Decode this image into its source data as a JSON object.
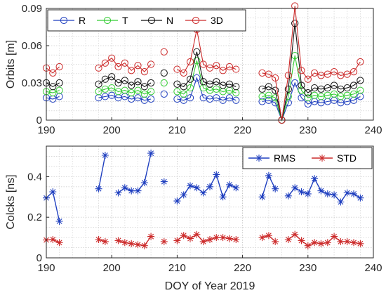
{
  "chart_data": [
    {
      "type": "line",
      "ylabel": "Orbits [m]",
      "xlabel": "",
      "xlim": [
        190,
        240
      ],
      "ylim": [
        0,
        0.09
      ],
      "yticks": [
        "0",
        "0.03",
        "0.06",
        "0.09"
      ],
      "xticks": [
        "190",
        "200",
        "210",
        "220",
        "230",
        "240"
      ],
      "grid": true,
      "legend_position": "top",
      "marker": "circle",
      "series": [
        {
          "name": "R",
          "color": "#1f3fbf",
          "x": [
            190,
            191,
            192,
            198,
            199,
            200,
            201,
            202,
            203,
            204,
            205,
            206,
            208,
            210,
            211,
            212,
            213,
            214,
            215,
            216,
            217,
            218,
            219,
            223,
            224,
            225,
            226,
            227,
            228,
            229,
            230,
            231,
            232,
            233,
            234,
            235,
            236,
            237,
            238
          ],
          "y": [
            0.018,
            0.017,
            0.019,
            0.018,
            0.019,
            0.02,
            0.018,
            0.019,
            0.017,
            0.018,
            0.016,
            0.017,
            0.021,
            0.017,
            0.016,
            0.018,
            0.034,
            0.018,
            0.017,
            0.018,
            0.016,
            0.018,
            0.016,
            0.015,
            0.016,
            0.014,
            0.0,
            0.014,
            0.03,
            0.018,
            0.013,
            0.015,
            0.014,
            0.015,
            0.016,
            0.014,
            0.015,
            0.016,
            0.019
          ]
        },
        {
          "name": "T",
          "color": "#33cc33",
          "x": [
            190,
            191,
            192,
            198,
            199,
            200,
            201,
            202,
            203,
            204,
            205,
            206,
            208,
            210,
            211,
            212,
            213,
            214,
            215,
            216,
            217,
            218,
            219,
            223,
            224,
            225,
            226,
            227,
            228,
            229,
            230,
            231,
            232,
            233,
            234,
            235,
            236,
            237,
            238
          ],
          "y": [
            0.023,
            0.022,
            0.024,
            0.023,
            0.025,
            0.026,
            0.023,
            0.024,
            0.022,
            0.024,
            0.021,
            0.023,
            0.03,
            0.023,
            0.021,
            0.026,
            0.048,
            0.026,
            0.024,
            0.025,
            0.023,
            0.024,
            0.022,
            0.019,
            0.02,
            0.018,
            0.0,
            0.019,
            0.052,
            0.024,
            0.018,
            0.02,
            0.019,
            0.02,
            0.021,
            0.019,
            0.02,
            0.021,
            0.024
          ]
        },
        {
          "name": "N",
          "color": "#111111",
          "x": [
            190,
            191,
            192,
            198,
            199,
            200,
            201,
            202,
            203,
            204,
            205,
            206,
            208,
            210,
            211,
            212,
            213,
            214,
            215,
            216,
            217,
            218,
            219,
            223,
            224,
            225,
            226,
            227,
            228,
            229,
            230,
            231,
            232,
            233,
            234,
            235,
            236,
            237,
            238
          ],
          "y": [
            0.03,
            0.027,
            0.03,
            0.029,
            0.033,
            0.035,
            0.03,
            0.032,
            0.028,
            0.031,
            0.027,
            0.03,
            0.038,
            0.029,
            0.027,
            0.033,
            0.055,
            0.031,
            0.029,
            0.031,
            0.028,
            0.029,
            0.027,
            0.025,
            0.027,
            0.024,
            0.0,
            0.025,
            0.078,
            0.028,
            0.022,
            0.026,
            0.025,
            0.026,
            0.028,
            0.025,
            0.026,
            0.028,
            0.032
          ]
        },
        {
          "name": "3D",
          "color": "#cc2a2a",
          "x": [
            190,
            191,
            192,
            198,
            199,
            200,
            201,
            202,
            203,
            204,
            205,
            206,
            208,
            210,
            211,
            212,
            213,
            214,
            215,
            216,
            217,
            218,
            219,
            223,
            224,
            225,
            226,
            227,
            228,
            229,
            230,
            231,
            232,
            233,
            234,
            235,
            236,
            237,
            238
          ],
          "y": [
            0.042,
            0.038,
            0.043,
            0.042,
            0.046,
            0.05,
            0.043,
            0.046,
            0.04,
            0.044,
            0.039,
            0.045,
            0.055,
            0.041,
            0.038,
            0.047,
            0.073,
            0.045,
            0.042,
            0.044,
            0.04,
            0.043,
            0.041,
            0.038,
            0.037,
            0.034,
            0.0,
            0.036,
            0.092,
            0.04,
            0.033,
            0.038,
            0.036,
            0.037,
            0.039,
            0.036,
            0.037,
            0.039,
            0.047
          ]
        }
      ]
    },
    {
      "type": "line",
      "ylabel": "Colcks [ns]",
      "xlabel": "DOY of Year 2019",
      "xlim": [
        190,
        240
      ],
      "ylim": [
        0,
        0.55
      ],
      "yticks": [
        "0",
        "0.2",
        "0.4"
      ],
      "xticks": [
        "190",
        "200",
        "210",
        "220",
        "230",
        "240"
      ],
      "grid": true,
      "legend_position": "top-right",
      "marker": "star",
      "series": [
        {
          "name": "RMS",
          "color": "#1f3fbf",
          "segments": [
            {
              "x": [
                190,
                191,
                192
              ],
              "y": [
                0.295,
                0.325,
                0.18
              ]
            },
            {
              "x": [
                198,
                199
              ],
              "y": [
                0.34,
                0.505
              ]
            },
            {
              "x": [
                201,
                202,
                203,
                204,
                205,
                206
              ],
              "y": [
                0.32,
                0.345,
                0.33,
                0.33,
                0.37,
                0.515
              ]
            },
            {
              "x": [
                208
              ],
              "y": [
                0.375
              ]
            },
            {
              "x": [
                210,
                211,
                212,
                213,
                214,
                215,
                216,
                217,
                218,
                219
              ],
              "y": [
                0.28,
                0.31,
                0.355,
                0.345,
                0.32,
                0.35,
                0.41,
                0.3,
                0.36,
                0.345
              ]
            },
            {
              "x": [
                223,
                224,
                225
              ],
              "y": [
                0.3,
                0.405,
                0.34
              ]
            },
            {
              "x": [
                227,
                228,
                229,
                230,
                231,
                232,
                233,
                234,
                235,
                236,
                237,
                238
              ],
              "y": [
                0.305,
                0.345,
                0.325,
                0.315,
                0.39,
                0.33,
                0.315,
                0.31,
                0.275,
                0.32,
                0.315,
                0.295
              ]
            }
          ]
        },
        {
          "name": "STD",
          "color": "#cc2a2a",
          "segments": [
            {
              "x": [
                190,
                191,
                192
              ],
              "y": [
                0.088,
                0.09,
                0.075
              ]
            },
            {
              "x": [
                198,
                199
              ],
              "y": [
                0.09,
                0.08
              ]
            },
            {
              "x": [
                201,
                202,
                203,
                204,
                205,
                206
              ],
              "y": [
                0.085,
                0.075,
                0.07,
                0.065,
                0.06,
                0.105
              ]
            },
            {
              "x": [
                208
              ],
              "y": [
                0.08
              ]
            },
            {
              "x": [
                210,
                211,
                212,
                213,
                214,
                215,
                216,
                217,
                218,
                219
              ],
              "y": [
                0.085,
                0.11,
                0.095,
                0.115,
                0.08,
                0.09,
                0.1,
                0.1,
                0.095,
                0.09
              ]
            },
            {
              "x": [
                223,
                224,
                225
              ],
              "y": [
                0.1,
                0.11,
                0.08
              ]
            },
            {
              "x": [
                227,
                228,
                229,
                230,
                231,
                232,
                233,
                234,
                235,
                236,
                237,
                238
              ],
              "y": [
                0.09,
                0.115,
                0.085,
                0.06,
                0.075,
                0.07,
                0.075,
                0.105,
                0.08,
                0.08,
                0.075,
                0.07
              ]
            }
          ]
        }
      ]
    }
  ]
}
